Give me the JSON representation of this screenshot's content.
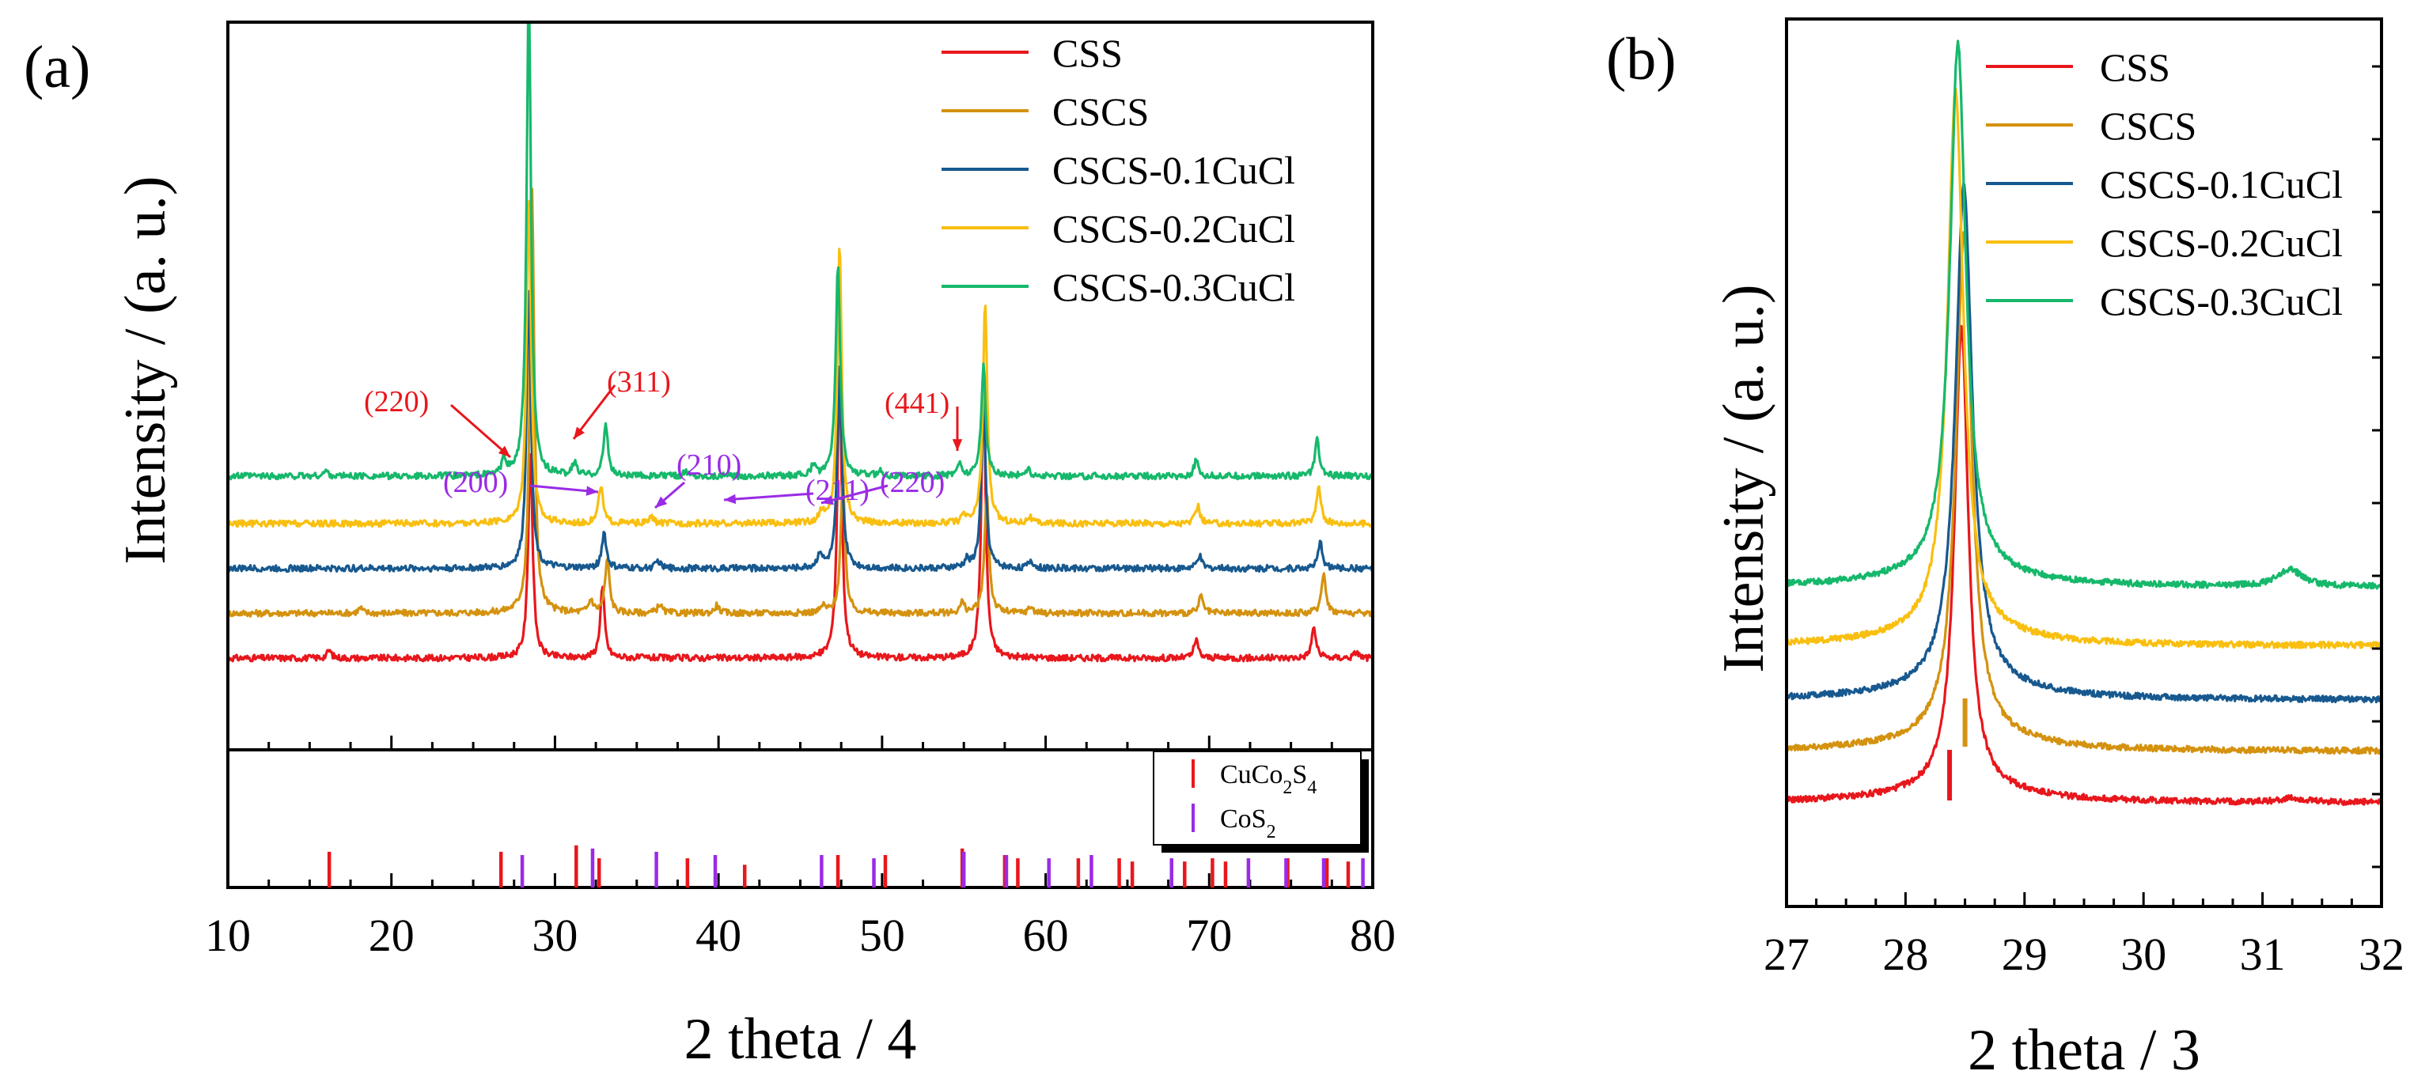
{
  "colors": {
    "CSS": "#e8171c",
    "CSCS": "#d4920f",
    "CSCS-0.1CuCl": "#17598f",
    "CSCS-0.2CuCl": "#f9bf10",
    "CSCS-0.3CuCl": "#16b86b",
    "cuco2s4": "#e8171c",
    "cos2": "#9a2be6",
    "hkl_cuco2s4": "#e8171c",
    "hkl_cos2": "#9a2be6"
  },
  "chart_data": [
    {
      "panel": "(a)",
      "type": "line",
      "xlabel": "2 theta / 4",
      "ylabel": "Intensity / (a. u.)",
      "xlim": [
        10,
        80
      ],
      "xticks": [
        "10",
        "20",
        "30",
        "40",
        "50",
        "60",
        "70",
        "80"
      ],
      "legend_position": "top-right",
      "series": [
        {
          "name": "CSS",
          "baseline": 0.0,
          "peaks": [
            [
              16.2,
              0.06
            ],
            [
              28.5,
              1.62
            ],
            [
              32.9,
              0.55
            ],
            [
              47.4,
              2.28
            ],
            [
              56.2,
              2.12
            ],
            [
              69.2,
              0.14
            ],
            [
              76.4,
              0.24
            ],
            [
              79.0,
              0.05
            ]
          ]
        },
        {
          "name": "CSCS",
          "baseline": 0.35,
          "peaks": [
            [
              18.1,
              0.04
            ],
            [
              28.6,
              3.3
            ],
            [
              32.2,
              0.1
            ],
            [
              33.2,
              0.42
            ],
            [
              36.4,
              0.07
            ],
            [
              39.9,
              0.06
            ],
            [
              46.4,
              0.05
            ],
            [
              47.6,
              1.05
            ],
            [
              54.9,
              0.08
            ],
            [
              56.4,
              0.95
            ],
            [
              59.1,
              0.05
            ],
            [
              69.5,
              0.13
            ],
            [
              77.0,
              0.32
            ]
          ]
        },
        {
          "name": "CSCS-0.1CuCl",
          "baseline": 0.7,
          "peaks": [
            [
              28.4,
              2.2
            ],
            [
              33.0,
              0.28
            ],
            [
              36.3,
              0.06
            ],
            [
              46.2,
              0.12
            ],
            [
              47.4,
              1.6
            ],
            [
              55.2,
              0.06
            ],
            [
              56.2,
              1.3
            ],
            [
              59.1,
              0.06
            ],
            [
              69.4,
              0.1
            ],
            [
              76.8,
              0.2
            ]
          ]
        },
        {
          "name": "CSCS-0.2CuCl",
          "baseline": 1.05,
          "peaks": [
            [
              28.4,
              2.58
            ],
            [
              32.8,
              0.3
            ],
            [
              35.9,
              0.05
            ],
            [
              46.3,
              0.08
            ],
            [
              47.4,
              2.18
            ],
            [
              55.0,
              0.05
            ],
            [
              56.3,
              1.72
            ],
            [
              59.0,
              0.05
            ],
            [
              69.3,
              0.14
            ],
            [
              76.7,
              0.3
            ]
          ]
        },
        {
          "name": "CSCS-0.3CuCl",
          "baseline": 1.42,
          "peaks": [
            [
              16.0,
              0.04
            ],
            [
              26.9,
              0.12
            ],
            [
              28.4,
              3.75
            ],
            [
              31.2,
              0.1
            ],
            [
              33.1,
              0.4
            ],
            [
              38.0,
              0.04
            ],
            [
              45.8,
              0.08
            ],
            [
              47.3,
              1.66
            ],
            [
              49.9,
              0.04
            ],
            [
              54.7,
              0.1
            ],
            [
              56.2,
              0.86
            ],
            [
              58.9,
              0.05
            ],
            [
              69.2,
              0.12
            ],
            [
              76.6,
              0.28
            ]
          ]
        }
      ],
      "annotations": [
        {
          "label": "(220)",
          "phase": "CuCo2S4",
          "series": "CSCS-0.3CuCl",
          "x": 26.9
        },
        {
          "label": "(311)",
          "phase": "CuCo2S4",
          "series": "CSCS-0.3CuCl",
          "x": 31.2
        },
        {
          "label": "(441)",
          "phase": "CuCo2S4",
          "series": "CSCS-0.3CuCl",
          "x": 54.7
        },
        {
          "label": "(200)",
          "phase": "CoS2",
          "series": "CSCS-0.2CuCl",
          "x": 32.4
        },
        {
          "label": "(210)",
          "phase": "CoS2",
          "series": "CSCS-0.2CuCl",
          "x": 36.1
        },
        {
          "label": "(211)",
          "phase": "CoS2",
          "series": "CSCS-0.2CuCl",
          "x": 39.8
        },
        {
          "label": "(220)",
          "phase": "CoS2",
          "series": "CSCS-0.2CuCl",
          "x": 46.5
        }
      ],
      "reference_patterns": {
        "legend": [
          {
            "label_parts": [
              "CuCo",
              "2",
              "S",
              "4"
            ]
          },
          {
            "label_parts": [
              "CoS",
              "2"
            ]
          }
        ],
        "CuCo2S4": [
          [
            16.2,
            0.55
          ],
          [
            26.7,
            0.55
          ],
          [
            31.3,
            0.65
          ],
          [
            32.7,
            0.45
          ],
          [
            38.1,
            0.45
          ],
          [
            41.6,
            0.35
          ],
          [
            47.3,
            0.5
          ],
          [
            50.2,
            0.5
          ],
          [
            54.9,
            0.6
          ],
          [
            57.5,
            0.5
          ],
          [
            58.3,
            0.45
          ],
          [
            62.0,
            0.45
          ],
          [
            64.5,
            0.45
          ],
          [
            65.3,
            0.4
          ],
          [
            68.5,
            0.4
          ],
          [
            70.2,
            0.45
          ],
          [
            71.0,
            0.4
          ],
          [
            74.8,
            0.45
          ],
          [
            77.2,
            0.45
          ],
          [
            78.5,
            0.4
          ]
        ],
        "CoS2": [
          [
            28.0,
            0.5
          ],
          [
            32.3,
            0.6
          ],
          [
            36.2,
            0.55
          ],
          [
            39.8,
            0.5
          ],
          [
            46.3,
            0.5
          ],
          [
            49.5,
            0.45
          ],
          [
            55.0,
            0.55
          ],
          [
            57.6,
            0.5
          ],
          [
            60.2,
            0.45
          ],
          [
            62.8,
            0.5
          ],
          [
            67.7,
            0.45
          ],
          [
            72.4,
            0.45
          ],
          [
            74.7,
            0.45
          ],
          [
            77.0,
            0.45
          ],
          [
            79.4,
            0.45
          ]
        ]
      }
    },
    {
      "panel": "(b)",
      "type": "line",
      "xlabel": "2 theta / 3",
      "ylabel": "Intensity / (a. u.)",
      "xlim": [
        27,
        32
      ],
      "xticks": [
        "27",
        "28",
        "29",
        "30",
        "31",
        "32"
      ],
      "legend_position": "top-right",
      "series": [
        {
          "name": "CSS",
          "baseline": 0.0,
          "peak_center": 28.47,
          "peak_height": 3.75,
          "peak_width": 0.07,
          "extra_peaks": [
            [
              31.25,
              0.03
            ]
          ]
        },
        {
          "name": "CSCS",
          "baseline": 0.42,
          "peak_center": 28.49,
          "peak_height": 4.1,
          "peak_width": 0.08,
          "extra_peaks": []
        },
        {
          "name": "CSCS-0.1CuCl",
          "baseline": 0.84,
          "peak_center": 28.49,
          "peak_height": 4.08,
          "peak_width": 0.085,
          "extra_peaks": []
        },
        {
          "name": "CSCS-0.2CuCl",
          "baseline": 1.28,
          "peak_center": 28.42,
          "peak_height": 4.42,
          "peak_width": 0.08,
          "extra_peaks": []
        },
        {
          "name": "CSCS-0.3CuCl",
          "baseline": 1.76,
          "peak_center": 28.44,
          "peak_height": 4.32,
          "peak_width": 0.08,
          "extra_peaks": [
            [
              31.23,
              0.14
            ]
          ]
        }
      ],
      "markers": [
        {
          "x": 28.37,
          "color_key": "cuco2s4"
        },
        {
          "x": 28.5,
          "color_key": "CSCS"
        }
      ]
    }
  ]
}
